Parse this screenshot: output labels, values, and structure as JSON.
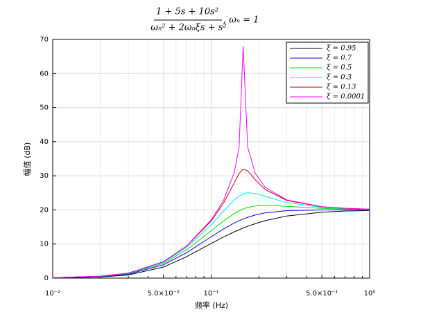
{
  "chart_data": {
    "type": "line",
    "title_numerator": "1 + 5s + 10s²",
    "title_denominator": "ωₙ² + 2ωₙξs + s²",
    "title_suffix": ",    ωₙ = 1",
    "x_label": "频率 (Hz)",
    "y_label": "幅值 (dB)",
    "xscale": "log",
    "x": [
      0.01,
      0.02,
      0.03,
      0.05,
      0.07,
      0.1,
      0.12,
      0.14,
      0.15,
      0.1592,
      0.17,
      0.19,
      0.22,
      0.3,
      0.5,
      0.7,
      1.0
    ],
    "series": [
      {
        "name": "ξ = 0.95",
        "color": "#000000",
        "values": [
          0.06,
          0.32,
          0.91,
          3.25,
          6.27,
          10.15,
          12.08,
          13.57,
          14.18,
          14.68,
          15.2,
          15.98,
          16.87,
          18.21,
          19.33,
          19.67,
          19.83
        ]
      },
      {
        "name": "ξ = 0.7",
        "color": "#0000ff",
        "values": [
          0.09,
          0.43,
          1.15,
          3.9,
          7.44,
          12.12,
          14.44,
          16.16,
          16.82,
          17.33,
          17.83,
          18.51,
          19.15,
          19.78,
          19.99,
          20.02,
          20.01
        ]
      },
      {
        "name": "ξ = 0.5",
        "color": "#00e000",
        "values": [
          0.11,
          0.5,
          1.3,
          4.33,
          8.3,
          13.87,
          16.8,
          18.95,
          19.72,
          20.25,
          20.72,
          21.19,
          21.37,
          21.05,
          20.43,
          20.24,
          20.11
        ]
      },
      {
        "name": "ξ = 0.3",
        "color": "#00e8e8",
        "values": [
          0.12,
          0.54,
          1.41,
          4.64,
          8.99,
          15.62,
          19.66,
          22.93,
          24.05,
          24.69,
          25.02,
          24.84,
          23.94,
          22.16,
          20.75,
          20.4,
          20.19
        ]
      },
      {
        "name": "ξ = 0.13",
        "color": "#c00000",
        "values": [
          0.13,
          0.56,
          1.46,
          4.79,
          9.35,
          16.74,
          22.07,
          27.96,
          30.66,
          31.95,
          31.49,
          28.82,
          25.93,
          22.78,
          20.91,
          20.47,
          20.22
        ]
      },
      {
        "name": "ξ = 0.0001",
        "color": "#ff00ff",
        "values": [
          0.13,
          0.57,
          1.47,
          4.83,
          9.43,
          17.05,
          22.88,
          31.02,
          38.3,
          68,
          38.37,
          30.68,
          26.56,
          22.94,
          20.95,
          20.49,
          20.23
        ]
      }
    ],
    "xlim": [
      0.01,
      1
    ],
    "xticks": [
      {
        "value": 0.01,
        "label": "10⁻²"
      },
      {
        "value": 0.05,
        "label": "5.0×10⁻²"
      },
      {
        "value": 0.1,
        "label": "10⁻¹"
      },
      {
        "value": 0.5,
        "label": "5.0×10⁻¹"
      },
      {
        "value": 1,
        "label": "10⁰"
      }
    ],
    "xminorticks": [
      0.02,
      0.03,
      0.04,
      0.06,
      0.07,
      0.08,
      0.09,
      0.2,
      0.3,
      0.4,
      0.6,
      0.7,
      0.8,
      0.9
    ],
    "ylim": [
      0,
      70
    ],
    "yticks": [
      0,
      10,
      20,
      30,
      40,
      50,
      60,
      70
    ],
    "grid": true,
    "legend": "upper right"
  }
}
